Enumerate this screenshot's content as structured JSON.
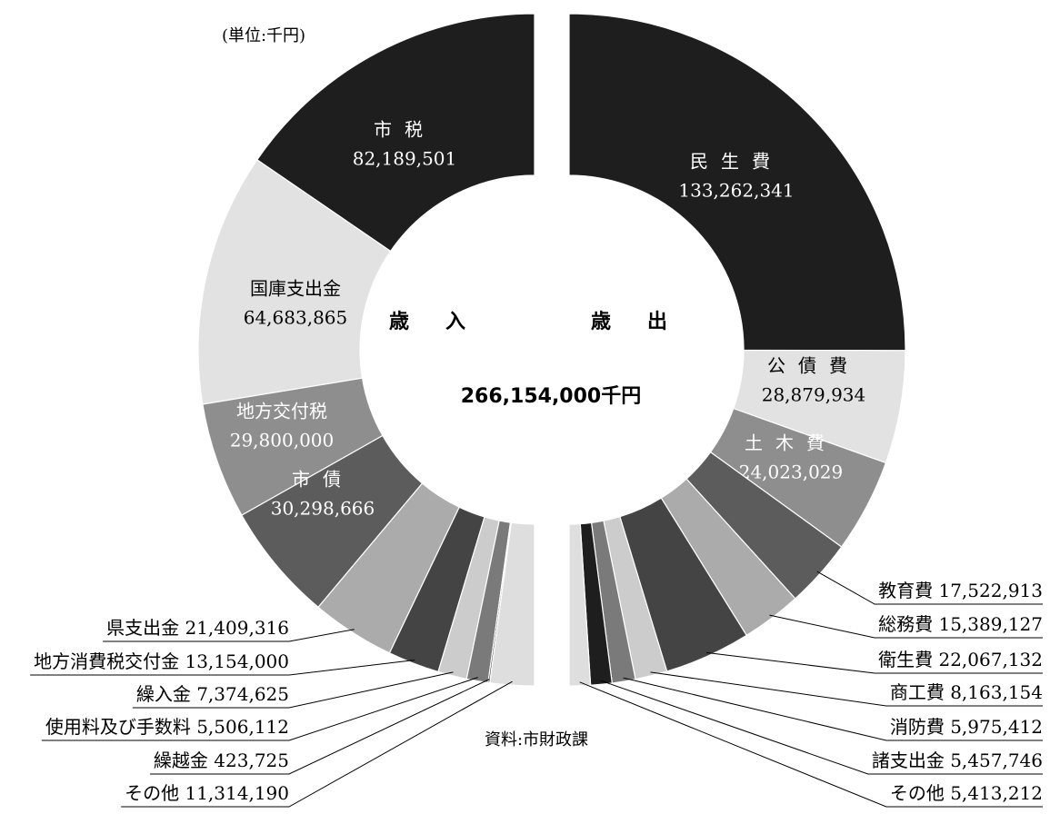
{
  "unit": "(単位:千円)",
  "source": "資料:市財政課",
  "total": "266,154,000千円",
  "chart_data": [
    {
      "type": "pie",
      "title": "歳入",
      "side": "left",
      "categories": [
        "市税",
        "国庫支出金",
        "地方交付税",
        "市債",
        "県支出金",
        "地方消費税交付金",
        "繰入金",
        "使用料及び手数料",
        "繰越金",
        "その他"
      ],
      "values": [
        82189501,
        64683865,
        29800000,
        30298666,
        21409316,
        13154000,
        7374625,
        5506112,
        423725,
        11314190
      ],
      "value_labels": [
        "82,189,501",
        "64,683,865",
        "29,800,000",
        "30,298,666",
        "21,409,316",
        "13,154,000",
        "7,374,625",
        "5,506,112",
        "423,725",
        "11,314,190"
      ],
      "colors": [
        "#1e1e1e",
        "#e2e2e2",
        "#8e8e8e",
        "#5c5c5c",
        "#ababab",
        "#444444",
        "#cccccc",
        "#7a7a7a",
        "#333333",
        "#dedede"
      ]
    },
    {
      "type": "pie",
      "title": "歳出",
      "side": "right",
      "categories": [
        "民生費",
        "公債費",
        "土木費",
        "教育費",
        "総務費",
        "衛生費",
        "商工費",
        "消防費",
        "諸支出金",
        "その他"
      ],
      "values": [
        133262341,
        28879934,
        24023029,
        17522913,
        15389127,
        22067132,
        8163154,
        5975412,
        5457746,
        5413212
      ],
      "value_labels": [
        "133,262,341",
        "28,879,934",
        "24,023,029",
        "17,522,913",
        "15,389,127",
        "22,067,132",
        "8,163,154",
        "5,975,412",
        "5,457,746",
        "5,413,212"
      ],
      "colors": [
        "#1e1e1e",
        "#e2e2e2",
        "#8e8e8e",
        "#5c5c5c",
        "#ababab",
        "#444444",
        "#cccccc",
        "#7a7a7a",
        "#1e1e1e",
        "#dedede"
      ]
    }
  ]
}
